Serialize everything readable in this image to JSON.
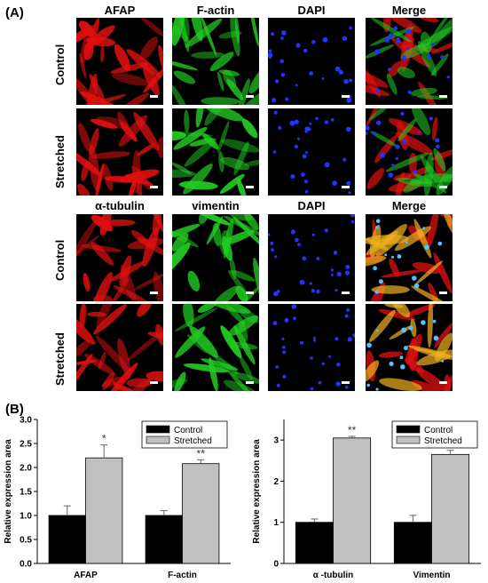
{
  "panel_a": {
    "label": "(A)",
    "group1": {
      "columns": [
        "AFAP",
        "F-actin",
        "DAPI",
        "Merge"
      ],
      "rows": [
        "Control",
        "Stretched"
      ]
    },
    "group2": {
      "columns": [
        "α-tubulin",
        "vimentin",
        "DAPI",
        "Merge"
      ],
      "rows": [
        "Control",
        "Stretched"
      ]
    },
    "channel_colors": {
      "AFAP": "#e01010",
      "F-actin": "#22cc22",
      "DAPI": "#2233ff",
      "alpha-tubulin": "#e01010",
      "vimentin": "#22cc22"
    }
  },
  "panel_b": {
    "label": "(B)"
  },
  "chart_data": [
    {
      "type": "bar",
      "title": "",
      "ylabel": "Relative expression area",
      "xlabel": "",
      "categories": [
        "AFAP",
        "F-actin"
      ],
      "series": [
        {
          "name": "Control",
          "color": "#000000",
          "values": [
            1.0,
            1.0
          ],
          "errors": [
            0.2,
            0.1
          ]
        },
        {
          "name": "Stretched",
          "color": "#c0c0c0",
          "values": [
            2.2,
            2.08
          ],
          "errors": [
            0.27,
            0.08
          ]
        }
      ],
      "significance": [
        "*",
        "**"
      ],
      "ylim": [
        0,
        3.0
      ],
      "yticks": [
        "0.0",
        "0.5",
        "1.0",
        "1.5",
        "2.0",
        "2.5",
        "3.0"
      ],
      "legend": "top-right",
      "grid": false
    },
    {
      "type": "bar",
      "title": "",
      "ylabel": "Relative expression area",
      "xlabel": "",
      "categories": [
        "α -tubulin",
        "Vimentin"
      ],
      "series": [
        {
          "name": "Control",
          "color": "#000000",
          "values": [
            1.0,
            1.0
          ],
          "errors": [
            0.08,
            0.17
          ]
        },
        {
          "name": "Stretched",
          "color": "#c0c0c0",
          "values": [
            3.05,
            2.65
          ],
          "errors": [
            0.04,
            0.1
          ]
        }
      ],
      "significance": [
        "**",
        "**"
      ],
      "ylim": [
        0,
        3.5
      ],
      "yticks": [
        "0",
        "1",
        "2",
        "3"
      ],
      "legend": "top-right",
      "grid": false
    }
  ]
}
